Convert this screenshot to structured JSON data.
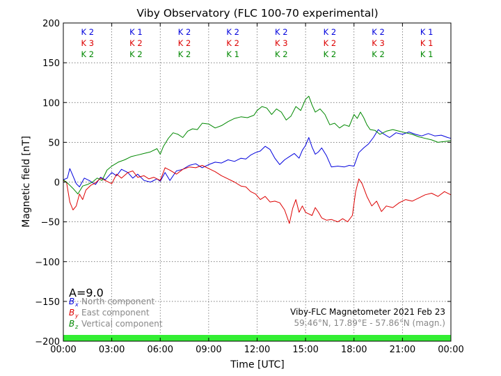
{
  "chart_data": {
    "type": "line",
    "title": "Viby Observatory (FLC 100-70 experimental)",
    "xlabel": "Time [UTC]",
    "ylabel": "Magnetic field [nT]",
    "xlim": [
      0,
      24
    ],
    "ylim": [
      -200,
      200
    ],
    "x_ticks": [
      0,
      3,
      6,
      9,
      12,
      15,
      18,
      21,
      24
    ],
    "x_tick_labels": [
      "00:00",
      "03:00",
      "06:00",
      "09:00",
      "12:00",
      "15:00",
      "18:00",
      "21:00",
      "00:00"
    ],
    "y_ticks": [
      -200,
      -150,
      -100,
      -50,
      0,
      50,
      100,
      150,
      200
    ],
    "y_tick_labels": [
      "−200",
      "−150",
      "−100",
      "−50",
      "0",
      "50",
      "100",
      "150",
      "200"
    ],
    "grid": true,
    "legend_position": "bottom-left",
    "k_index": {
      "interval_centers": [
        1.5,
        4.5,
        7.5,
        10.5,
        13.5,
        16.5,
        19.5,
        22.5
      ],
      "rows": [
        {
          "color": "#0000dd",
          "labels": [
            "K 2",
            "K 1",
            "K 2",
            "K 2",
            "K 2",
            "K 2",
            "K 2",
            "K 1"
          ]
        },
        {
          "color": "#dd0000",
          "labels": [
            "K 3",
            "K 2",
            "K 2",
            "K 2",
            "K 3",
            "K 2",
            "K 3",
            "K 1"
          ]
        },
        {
          "color": "#008800",
          "labels": [
            "K 2",
            "K 2",
            "K 2",
            "K 1",
            "K 2",
            "K 2",
            "K 2",
            "K 1"
          ]
        }
      ]
    },
    "a_index": "A=9.0",
    "station_label": "Viby-FLC Magnetometer 2021 Feb 23",
    "coords_label": "59.46°N, 17.89°E - 57.86°N (magn.)",
    "status_bar_color": "#33ee33",
    "series": [
      {
        "name": "North component",
        "symbol": "B",
        "sub": "x",
        "color": "#0000dd",
        "x": [
          0,
          0.25,
          0.4,
          0.55,
          0.8,
          1.0,
          1.3,
          1.6,
          2.0,
          2.3,
          2.6,
          3.0,
          3.3,
          3.6,
          4.0,
          4.3,
          4.6,
          5.0,
          5.4,
          5.8,
          6.0,
          6.3,
          6.6,
          7.0,
          7.4,
          7.8,
          8.2,
          8.6,
          9.0,
          9.4,
          9.8,
          10.2,
          10.6,
          11.0,
          11.3,
          11.6,
          11.9,
          12.2,
          12.5,
          12.8,
          13.1,
          13.4,
          13.7,
          14.0,
          14.3,
          14.6,
          14.8,
          15.0,
          15.2,
          15.4,
          15.6,
          15.8,
          16.0,
          16.3,
          16.6,
          17.0,
          17.4,
          17.7,
          18.0,
          18.3,
          18.6,
          18.9,
          19.2,
          19.5,
          19.8,
          20.2,
          20.6,
          21.0,
          21.4,
          21.8,
          22.2,
          22.6,
          23.0,
          23.4,
          23.8,
          24.0
        ],
        "values": [
          3,
          5,
          17,
          10,
          -2,
          -6,
          5,
          2,
          -3,
          6,
          3,
          12,
          8,
          16,
          12,
          5,
          10,
          2,
          0,
          4,
          1,
          12,
          2,
          14,
          16,
          21,
          23,
          18,
          22,
          25,
          24,
          28,
          26,
          30,
          29,
          34,
          37,
          39,
          45,
          41,
          30,
          22,
          28,
          32,
          36,
          30,
          40,
          46,
          56,
          44,
          35,
          38,
          43,
          33,
          19,
          20,
          19,
          21,
          20,
          37,
          43,
          48,
          56,
          66,
          61,
          56,
          62,
          60,
          63,
          60,
          58,
          61,
          58,
          59,
          56,
          55
        ]
      },
      {
        "name": "East component",
        "symbol": "B",
        "sub": "y",
        "color": "#dd0000",
        "x": [
          0,
          0.2,
          0.4,
          0.6,
          0.8,
          1.0,
          1.2,
          1.4,
          1.7,
          2.0,
          2.3,
          2.6,
          3.0,
          3.3,
          3.6,
          4.0,
          4.3,
          4.6,
          5.0,
          5.3,
          5.6,
          6.0,
          6.3,
          6.6,
          7.0,
          7.4,
          7.8,
          8.2,
          8.6,
          9.0,
          9.4,
          9.8,
          10.2,
          10.6,
          11.0,
          11.3,
          11.6,
          11.9,
          12.2,
          12.5,
          12.8,
          13.1,
          13.4,
          13.7,
          14.0,
          14.2,
          14.4,
          14.6,
          14.8,
          15.0,
          15.2,
          15.4,
          15.6,
          15.8,
          16.0,
          16.3,
          16.6,
          17.0,
          17.3,
          17.6,
          17.9,
          18.1,
          18.3,
          18.5,
          18.8,
          19.1,
          19.4,
          19.7,
          20.0,
          20.4,
          20.8,
          21.2,
          21.6,
          22.0,
          22.4,
          22.8,
          23.2,
          23.6,
          24.0
        ],
        "values": [
          2,
          0,
          -25,
          -35,
          -30,
          -15,
          -22,
          -10,
          -4,
          -1,
          5,
          2,
          -2,
          10,
          5,
          12,
          14,
          6,
          8,
          4,
          6,
          2,
          18,
          15,
          10,
          16,
          19,
          18,
          21,
          17,
          13,
          8,
          4,
          0,
          -5,
          -6,
          -12,
          -15,
          -22,
          -18,
          -25,
          -24,
          -26,
          -35,
          -52,
          -33,
          -22,
          -38,
          -30,
          -38,
          -40,
          -42,
          -32,
          -38,
          -45,
          -48,
          -47,
          -50,
          -46,
          -50,
          -42,
          -12,
          4,
          -2,
          -18,
          -30,
          -24,
          -37,
          -30,
          -32,
          -26,
          -22,
          -24,
          -20,
          -16,
          -14,
          -18,
          -12,
          -16
        ]
      },
      {
        "name": "Vertical component",
        "symbol": "B",
        "sub": "z",
        "color": "#008800",
        "x": [
          0,
          0.3,
          0.6,
          0.9,
          1.2,
          1.5,
          1.8,
          2.1,
          2.4,
          2.7,
          3.0,
          3.4,
          3.8,
          4.2,
          4.6,
          5.0,
          5.4,
          5.8,
          6.0,
          6.2,
          6.5,
          6.8,
          7.1,
          7.4,
          7.7,
          8.0,
          8.3,
          8.6,
          9.0,
          9.4,
          9.8,
          10.2,
          10.6,
          11.0,
          11.4,
          11.8,
          12.0,
          12.3,
          12.6,
          12.9,
          13.2,
          13.5,
          13.8,
          14.1,
          14.4,
          14.7,
          15.0,
          15.2,
          15.4,
          15.6,
          15.9,
          16.2,
          16.5,
          16.8,
          17.1,
          17.4,
          17.7,
          18.0,
          18.2,
          18.4,
          18.6,
          18.8,
          19.0,
          19.3,
          19.6,
          20.0,
          20.4,
          20.8,
          21.2,
          21.6,
          22.0,
          22.4,
          22.8,
          23.2,
          23.6,
          24.0
        ],
        "values": [
          3,
          -2,
          -8,
          -15,
          -5,
          -3,
          0,
          5,
          2,
          15,
          20,
          25,
          28,
          32,
          34,
          36,
          38,
          42,
          35,
          45,
          55,
          62,
          60,
          56,
          64,
          67,
          66,
          74,
          73,
          68,
          71,
          76,
          80,
          82,
          81,
          84,
          90,
          95,
          93,
          85,
          92,
          88,
          78,
          83,
          95,
          90,
          104,
          108,
          97,
          88,
          92,
          85,
          72,
          74,
          68,
          72,
          70,
          85,
          80,
          88,
          81,
          72,
          66,
          65,
          60,
          64,
          66,
          64,
          62,
          60,
          57,
          55,
          53,
          50,
          51,
          52
        ]
      }
    ]
  }
}
